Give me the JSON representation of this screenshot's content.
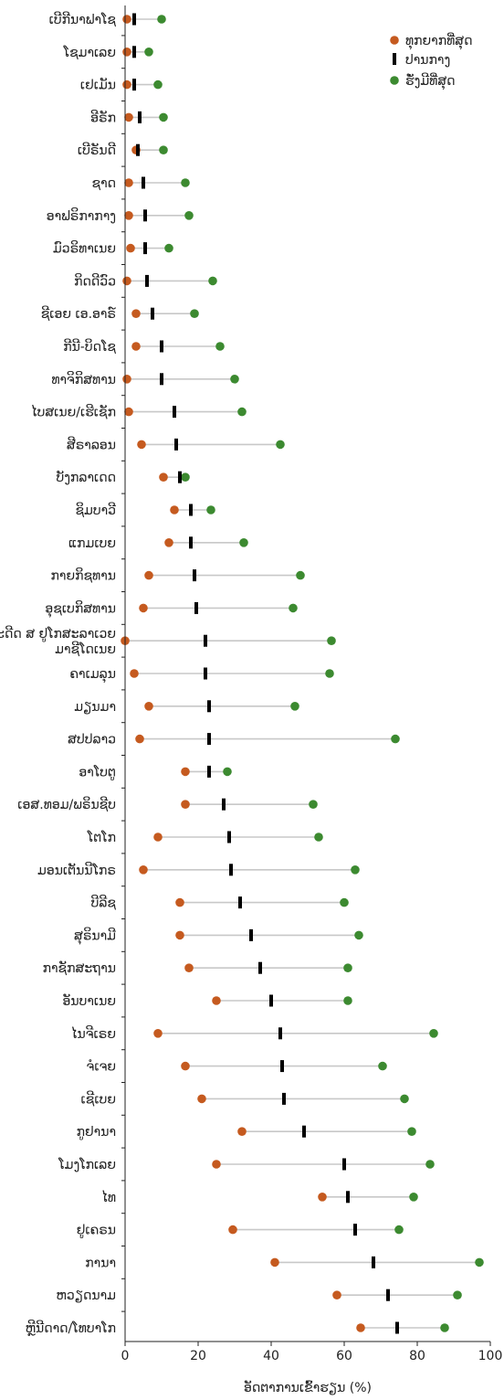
{
  "chart_data": {
    "type": "dot-range",
    "xlabel": "ອັດຕາການເຂົ້າຮຽນ (%)",
    "xlim": [
      0,
      100
    ],
    "xticks": [
      0,
      20,
      40,
      60,
      80,
      100
    ],
    "grid": false,
    "legend_position": "top-right",
    "colors": {
      "poorest": "#c55a1f",
      "average": "#000000",
      "richest": "#3c8a30",
      "range_line": "#c8c8c8"
    },
    "series_names": {
      "poorest": "ທຸກຍາກທີ່ສຸດ",
      "average": "ປານກາງ",
      "richest": "ຮັ່ງມີທີ່ສຸດ"
    },
    "categories": [
      "ເບີກີນາຟາໂຊ",
      "ໂຊມາເລຍ",
      "ເຢເມັນ",
      "ອີຣັກ",
      "ເບີຣັນດີ",
      "ຊາດ",
      "ອາຟຣິກາກາງ",
      "ມົວຣິທາເນຍ",
      "ກິດດີວົວ",
      "ຊີເອຍ ເອ.ອາຣ໌",
      "ກີນີ-ບິດໂຊ",
      "ທາຈິກິສທານ",
      "ໄບສເນຍ/ເຮີເຊັກ",
      "ສີຣາລອນ",
      "ບັງກລາເດດ",
      "ຊິມບາວີ",
      "ແກມເບຍ",
      "ກາຍກິຊທານ",
      "ອຸຊເບກິສທານ",
      "ອະດີດ ສ ຢູໂກສະລາເວຍ ມາຊີໂດເນຍ",
      "ຄາເມລຸນ",
      "ມຽນມາ",
      "ສປປລາວ",
      "ອາໂບຕູ",
      "ເອສ.ທອມ/ພຣິນຊີບ",
      "ໂຕໂກ",
      "ມອນເຕັນນີໂກຣ",
      "ບີລີຊ",
      "ສຸຣິນາມີ",
      "ກາຊັກສະຖານ",
      "ອັນບາເນຍ",
      "ໄນຈີເຣຍ",
      "ຈໍເຈຍ",
      "ເຊີເບຍ",
      "ກູຢານາ",
      "ໂມງໂກເລຍ",
      "ໄທ",
      "ຢູເຄຣນ",
      "ການາ",
      "ຫວຽດນາມ",
      "ຫຼີນີດາດ/ໂທບາໂກ"
    ],
    "series": [
      {
        "key": "poorest",
        "values": [
          0.5,
          0.5,
          0.5,
          1,
          3,
          1,
          1,
          1.5,
          0.5,
          3,
          3,
          0.5,
          1,
          4.5,
          10.5,
          13.5,
          12,
          6.5,
          5,
          0,
          2.5,
          6.5,
          4,
          16.5,
          16.5,
          9,
          5,
          15,
          15,
          17.5,
          25,
          9,
          16.5,
          21,
          32,
          25,
          54,
          29.5,
          41,
          58,
          64.5
        ]
      },
      {
        "key": "average",
        "values": [
          2.5,
          2.5,
          2.5,
          4,
          3.5,
          5,
          5.5,
          5.5,
          6,
          7.5,
          10,
          10,
          13.5,
          14,
          15,
          18,
          18,
          19,
          19.5,
          22,
          22,
          23,
          23,
          23,
          27,
          28.5,
          29,
          31.5,
          34.5,
          37,
          40,
          42.5,
          43,
          43.5,
          49,
          60,
          61,
          63,
          68,
          72,
          74.5
        ]
      },
      {
        "key": "richest",
        "values": [
          10,
          6.5,
          9,
          10.5,
          10.5,
          16.5,
          17.5,
          12,
          24,
          19,
          26,
          30,
          32,
          42.5,
          16.5,
          23.5,
          32.5,
          48,
          46,
          56.5,
          56,
          46.5,
          74,
          28,
          51.5,
          53,
          63,
          60,
          64,
          61,
          61,
          84.5,
          70.5,
          76.5,
          78.5,
          83.5,
          79,
          75,
          97,
          91,
          87.5
        ]
      }
    ]
  }
}
